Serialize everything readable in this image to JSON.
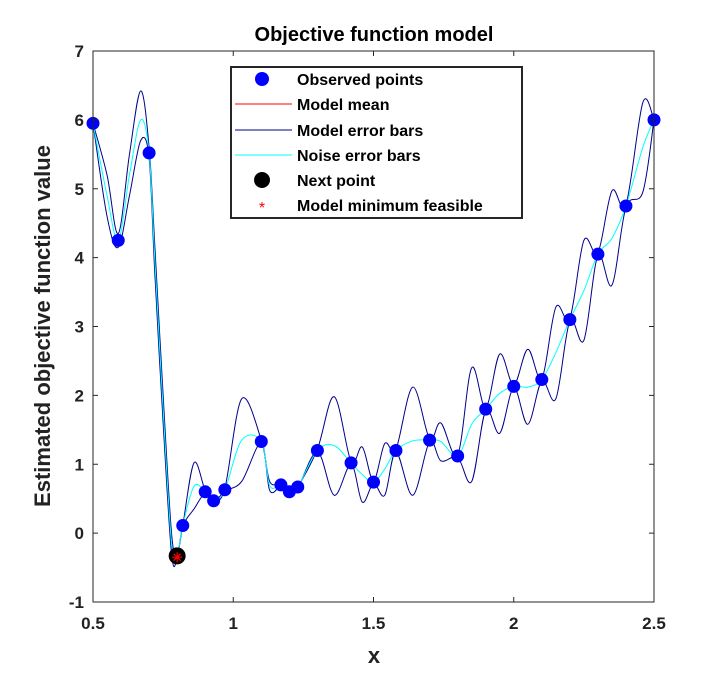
{
  "chart_data": {
    "type": "line",
    "title": "Objective function model",
    "xlabel": "x",
    "ylabel": "Estimated objective function value",
    "xlim": [
      0.5,
      2.5
    ],
    "ylim": [
      -1,
      7
    ],
    "x_ticks": [
      "0.5",
      "1",
      "1.5",
      "2",
      "2.5"
    ],
    "y_ticks": [
      "-1",
      "0",
      "1",
      "2",
      "3",
      "4",
      "5",
      "6",
      "7"
    ],
    "grid": false,
    "legend_position": "top-center",
    "legend": [
      {
        "key": "observed",
        "label": "Observed points",
        "color": "#0000ff"
      },
      {
        "key": "mean",
        "label": "Model mean",
        "color": "#ff0000"
      },
      {
        "key": "model_err",
        "label": "Model error bars",
        "color": "#00008b"
      },
      {
        "key": "noise_err",
        "label": "Noise error bars",
        "color": "#00ffff"
      },
      {
        "key": "next",
        "label": "Next point",
        "color": "#000000"
      },
      {
        "key": "min",
        "label": "Model minimum feasible",
        "color": "#ff0000"
      }
    ],
    "observed_points": [
      {
        "x": 0.5,
        "y": 5.95
      },
      {
        "x": 0.59,
        "y": 4.25
      },
      {
        "x": 0.7,
        "y": 5.52
      },
      {
        "x": 0.82,
        "y": 0.11
      },
      {
        "x": 0.9,
        "y": 0.6
      },
      {
        "x": 0.93,
        "y": 0.47
      },
      {
        "x": 0.97,
        "y": 0.63
      },
      {
        "x": 1.1,
        "y": 1.33
      },
      {
        "x": 1.17,
        "y": 0.7
      },
      {
        "x": 1.2,
        "y": 0.6
      },
      {
        "x": 1.23,
        "y": 0.67
      },
      {
        "x": 1.3,
        "y": 1.2
      },
      {
        "x": 1.42,
        "y": 1.02
      },
      {
        "x": 1.5,
        "y": 0.74
      },
      {
        "x": 1.58,
        "y": 1.2
      },
      {
        "x": 1.7,
        "y": 1.35
      },
      {
        "x": 1.8,
        "y": 1.12
      },
      {
        "x": 1.9,
        "y": 1.8
      },
      {
        "x": 2.0,
        "y": 2.13
      },
      {
        "x": 2.1,
        "y": 2.23
      },
      {
        "x": 2.2,
        "y": 3.1
      },
      {
        "x": 2.3,
        "y": 4.05
      },
      {
        "x": 2.4,
        "y": 4.75
      },
      {
        "x": 2.5,
        "y": 6.0
      }
    ],
    "next_point": {
      "x": 0.8,
      "y": -0.33
    },
    "model_minimum": {
      "x": 0.8,
      "y": -0.35
    },
    "model_error_band": {
      "upper": [
        [
          0.5,
          5.95
        ],
        [
          0.55,
          5.2
        ],
        [
          0.59,
          4.35
        ],
        [
          0.63,
          5.5
        ],
        [
          0.67,
          6.42
        ],
        [
          0.7,
          5.6
        ],
        [
          0.72,
          4.2
        ],
        [
          0.75,
          2.0
        ],
        [
          0.78,
          0.0
        ],
        [
          0.8,
          -0.3
        ],
        [
          0.82,
          0.11
        ],
        [
          0.86,
          1.02
        ],
        [
          0.9,
          0.62
        ],
        [
          0.93,
          0.48
        ],
        [
          0.97,
          0.65
        ],
        [
          1.03,
          1.95
        ],
        [
          1.1,
          1.35
        ],
        [
          1.13,
          0.75
        ],
        [
          1.17,
          0.72
        ],
        [
          1.2,
          0.62
        ],
        [
          1.23,
          0.68
        ],
        [
          1.3,
          1.22
        ],
        [
          1.36,
          1.98
        ],
        [
          1.42,
          1.04
        ],
        [
          1.46,
          1.25
        ],
        [
          1.5,
          0.76
        ],
        [
          1.54,
          1.3
        ],
        [
          1.58,
          1.22
        ],
        [
          1.64,
          2.12
        ],
        [
          1.7,
          1.37
        ],
        [
          1.74,
          1.6
        ],
        [
          1.8,
          1.14
        ],
        [
          1.85,
          2.4
        ],
        [
          1.9,
          1.82
        ],
        [
          1.95,
          2.6
        ],
        [
          2.0,
          2.15
        ],
        [
          2.05,
          2.67
        ],
        [
          2.1,
          2.25
        ],
        [
          2.15,
          3.28
        ],
        [
          2.2,
          3.12
        ],
        [
          2.25,
          4.25
        ],
        [
          2.3,
          4.07
        ],
        [
          2.35,
          4.97
        ],
        [
          2.4,
          4.77
        ],
        [
          2.46,
          6.25
        ],
        [
          2.5,
          6.0
        ]
      ],
      "lower": [
        [
          0.5,
          5.95
        ],
        [
          0.55,
          4.6
        ],
        [
          0.59,
          4.15
        ],
        [
          0.63,
          4.9
        ],
        [
          0.67,
          5.7
        ],
        [
          0.7,
          5.45
        ],
        [
          0.72,
          3.8
        ],
        [
          0.75,
          1.6
        ],
        [
          0.78,
          -0.3
        ],
        [
          0.8,
          -0.37
        ],
        [
          0.82,
          0.1
        ],
        [
          0.86,
          0.35
        ],
        [
          0.9,
          0.58
        ],
        [
          0.93,
          0.45
        ],
        [
          0.97,
          0.61
        ],
        [
          1.03,
          0.75
        ],
        [
          1.1,
          1.31
        ],
        [
          1.13,
          0.62
        ],
        [
          1.17,
          0.68
        ],
        [
          1.2,
          0.58
        ],
        [
          1.23,
          0.65
        ],
        [
          1.3,
          1.18
        ],
        [
          1.36,
          0.55
        ],
        [
          1.42,
          1.0
        ],
        [
          1.46,
          0.45
        ],
        [
          1.5,
          0.72
        ],
        [
          1.54,
          0.55
        ],
        [
          1.58,
          1.18
        ],
        [
          1.64,
          0.55
        ],
        [
          1.7,
          1.33
        ],
        [
          1.74,
          1.05
        ],
        [
          1.8,
          1.1
        ],
        [
          1.85,
          0.75
        ],
        [
          1.9,
          1.78
        ],
        [
          1.95,
          1.45
        ],
        [
          2.0,
          2.11
        ],
        [
          2.05,
          1.58
        ],
        [
          2.1,
          2.21
        ],
        [
          2.15,
          1.95
        ],
        [
          2.2,
          3.08
        ],
        [
          2.25,
          2.8
        ],
        [
          2.3,
          4.03
        ],
        [
          2.35,
          3.6
        ],
        [
          2.4,
          4.73
        ],
        [
          2.46,
          4.95
        ],
        [
          2.5,
          6.0
        ]
      ]
    },
    "noise_error_curve": [
      [
        0.5,
        5.95
      ],
      [
        0.55,
        4.9
      ],
      [
        0.59,
        4.25
      ],
      [
        0.63,
        5.2
      ],
      [
        0.67,
        6.0
      ],
      [
        0.7,
        5.52
      ],
      [
        0.72,
        4.0
      ],
      [
        0.75,
        1.8
      ],
      [
        0.78,
        -0.15
      ],
      [
        0.8,
        -0.33
      ],
      [
        0.82,
        0.11
      ],
      [
        0.86,
        0.68
      ],
      [
        0.9,
        0.6
      ],
      [
        0.93,
        0.47
      ],
      [
        0.97,
        0.63
      ],
      [
        1.03,
        1.35
      ],
      [
        1.1,
        1.33
      ],
      [
        1.13,
        0.69
      ],
      [
        1.17,
        0.7
      ],
      [
        1.2,
        0.6
      ],
      [
        1.23,
        0.67
      ],
      [
        1.3,
        1.2
      ],
      [
        1.36,
        1.27
      ],
      [
        1.42,
        1.02
      ],
      [
        1.46,
        0.85
      ],
      [
        1.5,
        0.74
      ],
      [
        1.54,
        0.93
      ],
      [
        1.58,
        1.2
      ],
      [
        1.64,
        1.34
      ],
      [
        1.7,
        1.35
      ],
      [
        1.74,
        1.33
      ],
      [
        1.8,
        1.12
      ],
      [
        1.85,
        1.58
      ],
      [
        1.9,
        1.8
      ],
      [
        1.95,
        2.03
      ],
      [
        2.0,
        2.13
      ],
      [
        2.05,
        2.12
      ],
      [
        2.1,
        2.23
      ],
      [
        2.15,
        2.62
      ],
      [
        2.2,
        3.1
      ],
      [
        2.25,
        3.52
      ],
      [
        2.3,
        4.05
      ],
      [
        2.35,
        4.28
      ],
      [
        2.4,
        4.75
      ],
      [
        2.46,
        5.6
      ],
      [
        2.5,
        6.0
      ]
    ]
  }
}
